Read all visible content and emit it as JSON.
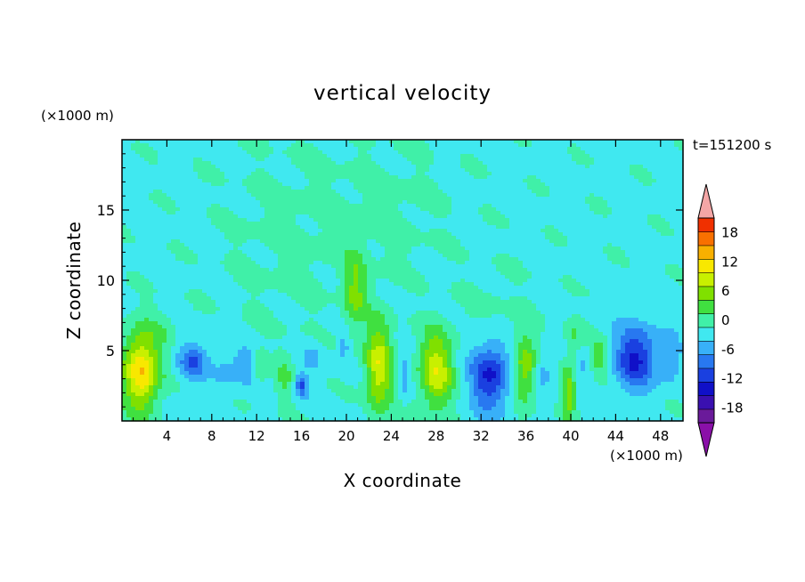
{
  "chart_data": {
    "type": "heatmap",
    "title": "vertical velocity",
    "xlabel": "X coordinate",
    "ylabel": "Z coordinate",
    "x_unit": "(×1000 m)",
    "y_unit": "(×1000 m)",
    "time_label": "t=151200 s",
    "xlim": [
      0,
      50
    ],
    "ylim": [
      0,
      20
    ],
    "xticks": [
      4,
      8,
      12,
      16,
      20,
      24,
      28,
      32,
      36,
      40,
      44,
      48
    ],
    "yticks": [
      5,
      10,
      15
    ],
    "colorbar": {
      "levels": [
        -21,
        -18,
        -15,
        -12,
        -9,
        -6,
        -3,
        0,
        3,
        6,
        9,
        12,
        15,
        18,
        21
      ],
      "tick_labels": [
        "18",
        "12",
        "6",
        "0",
        "-6",
        "-12",
        "-18"
      ],
      "tick_values": [
        18,
        12,
        6,
        0,
        -6,
        -12,
        -18
      ],
      "colors": [
        "#6a1a9a",
        "#3a10b0",
        "#1010c8",
        "#1a40e0",
        "#2878f0",
        "#38b0f8",
        "#40e8f0",
        "#40f0a8",
        "#40e040",
        "#80e000",
        "#c8f000",
        "#f8e800",
        "#f8b000",
        "#f87000",
        "#f03000"
      ],
      "under_color": "#8a10a8",
      "over_color": "#f4a6a6"
    },
    "features": [
      {
        "x": 1.7,
        "z": 3.5,
        "w": 16,
        "rx": 1.6,
        "rz": 2.8
      },
      {
        "x": 6.3,
        "z": 4.2,
        "w": -8,
        "rx": 1.3,
        "rz": 1.3
      },
      {
        "x": 9.2,
        "z": 3.5,
        "w": -3,
        "rx": 1.2,
        "rz": 1.8
      },
      {
        "x": 11.0,
        "z": 4.0,
        "w": -4,
        "rx": 1.0,
        "rz": 1.4
      },
      {
        "x": 12.2,
        "z": 3.8,
        "w": 4,
        "rx": 0.6,
        "rz": 1.2
      },
      {
        "x": 14.5,
        "z": 3.0,
        "w": 4,
        "rx": 0.8,
        "rz": 1.8
      },
      {
        "x": 16.0,
        "z": 2.5,
        "w": -9,
        "rx": 0.6,
        "rz": 0.8
      },
      {
        "x": 17.0,
        "z": 4.6,
        "w": -3,
        "rx": 1.0,
        "rz": 1.2
      },
      {
        "x": 19.7,
        "z": 5.2,
        "w": -5,
        "rx": 0.5,
        "rz": 0.8
      },
      {
        "x": 20.8,
        "z": 9.3,
        "w": 7,
        "rx": 1.0,
        "rz": 2.8
      },
      {
        "x": 22.9,
        "z": 3.8,
        "w": 12,
        "rx": 1.2,
        "rz": 3.2
      },
      {
        "x": 25.2,
        "z": 3.2,
        "w": -5,
        "rx": 0.5,
        "rz": 1.5
      },
      {
        "x": 28.0,
        "z": 3.6,
        "w": 12,
        "rx": 1.5,
        "rz": 2.8
      },
      {
        "x": 32.8,
        "z": 3.2,
        "w": -12,
        "rx": 1.7,
        "rz": 2.4
      },
      {
        "x": 35.9,
        "z": 3.8,
        "w": 9,
        "rx": 1.0,
        "rz": 2.6
      },
      {
        "x": 37.6,
        "z": 3.5,
        "w": -4,
        "rx": 0.8,
        "rz": 1.2
      },
      {
        "x": 39.8,
        "z": 2.0,
        "w": 9,
        "rx": 0.6,
        "rz": 2.0
      },
      {
        "x": 41.5,
        "z": 4.0,
        "w": -4,
        "rx": 0.8,
        "rz": 1.5
      },
      {
        "x": 42.3,
        "z": 4.5,
        "w": 8,
        "rx": 0.9,
        "rz": 1.2
      },
      {
        "x": 40.3,
        "z": 6.0,
        "w": 4,
        "rx": 0.8,
        "rz": 1.4
      },
      {
        "x": 45.8,
        "z": 4.5,
        "w": -12,
        "rx": 1.8,
        "rz": 2.2
      },
      {
        "x": 48.8,
        "z": 4.5,
        "w": -4,
        "rx": 1.0,
        "rz": 1.8
      },
      {
        "x": 3.5,
        "z": 6.5,
        "w": 2,
        "rx": 1.5,
        "rz": 1.5
      },
      {
        "x": 15.0,
        "z": 13.0,
        "w": 1.6,
        "rx": 6.0,
        "rz": 7.0
      },
      {
        "x": 24.0,
        "z": 15.0,
        "w": 1.6,
        "rx": 5.0,
        "rz": 5.0
      },
      {
        "x": 33.0,
        "z": 8.0,
        "w": 1.4,
        "rx": 3.0,
        "rz": 3.0
      }
    ]
  }
}
